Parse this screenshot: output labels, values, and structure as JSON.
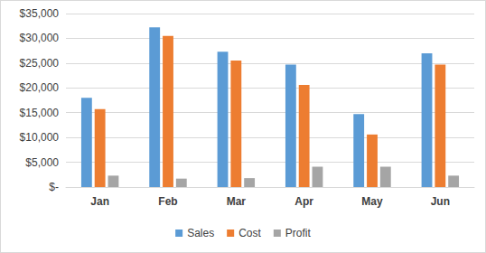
{
  "chart_data": {
    "type": "bar",
    "categories": [
      "Jan",
      "Feb",
      "Mar",
      "Apr",
      "May",
      "Jun"
    ],
    "series": [
      {
        "name": "Sales",
        "color": "#5b9bd5",
        "values": [
          18000,
          32200,
          27300,
          24700,
          14700,
          27000
        ]
      },
      {
        "name": "Cost",
        "color": "#ed7d31",
        "values": [
          15700,
          30500,
          25500,
          20600,
          10600,
          24700
        ]
      },
      {
        "name": "Profit",
        "color": "#a5a5a5",
        "values": [
          2300,
          1700,
          1800,
          4100,
          4100,
          2300
        ]
      }
    ],
    "ylim": [
      0,
      35000
    ],
    "yticks": [
      {
        "value": 0,
        "label": "$-"
      },
      {
        "value": 5000,
        "label": "$5,000"
      },
      {
        "value": 10000,
        "label": "$10,000"
      },
      {
        "value": 15000,
        "label": "$15,000"
      },
      {
        "value": 20000,
        "label": "$20,000"
      },
      {
        "value": 25000,
        "label": "$25,000"
      },
      {
        "value": 30000,
        "label": "$30,000"
      },
      {
        "value": 35000,
        "label": "$35,000"
      }
    ],
    "grid": true,
    "legend": "bottom"
  }
}
